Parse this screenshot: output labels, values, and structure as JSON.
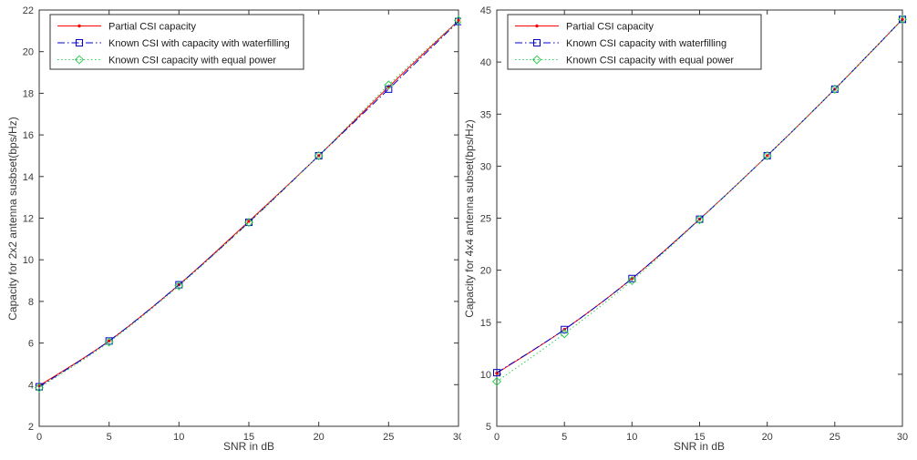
{
  "figure": {
    "background": "#ffffff",
    "axis_color": "#333333",
    "text_color": "#3a3a3a"
  },
  "chart_data": [
    {
      "id": "chart-2x2",
      "type": "line",
      "title": "",
      "xlabel": "SNR in dB",
      "ylabel": "Capacity for 2x2 antenna susbset(bps/Hz)",
      "xlim": [
        0,
        30
      ],
      "ylim": [
        2,
        22
      ],
      "xticks": [
        0,
        5,
        10,
        15,
        20,
        25,
        30
      ],
      "yticks": [
        2,
        4,
        6,
        8,
        10,
        12,
        14,
        16,
        18,
        20,
        22
      ],
      "grid": false,
      "legend_position": "top-left",
      "x": [
        0,
        5,
        10,
        15,
        20,
        25,
        30
      ],
      "series": [
        {
          "name": "Partial CSI capacity",
          "color": "#ff0000",
          "line_style": "solid",
          "marker": "dot",
          "values": [
            3.95,
            6.1,
            8.8,
            11.85,
            15.0,
            18.3,
            21.5
          ]
        },
        {
          "name": "Known CSI with capacity with waterfilling",
          "color": "#0000cc",
          "line_style": "dashdot",
          "marker": "square",
          "values": [
            3.9,
            6.1,
            8.8,
            11.8,
            15.0,
            18.2,
            21.45
          ]
        },
        {
          "name": "Known CSI capacity with equal power",
          "color": "#33cc55",
          "line_style": "dotted",
          "marker": "diamond",
          "values": [
            3.85,
            6.05,
            8.75,
            11.8,
            15.0,
            18.4,
            21.5
          ]
        }
      ]
    },
    {
      "id": "chart-4x4",
      "type": "line",
      "title": "",
      "xlabel": "SNR in dB",
      "ylabel": "Capacity for 4x4 antenna subset(bps/Hz)",
      "xlim": [
        0,
        30
      ],
      "ylim": [
        5,
        45
      ],
      "xticks": [
        0,
        5,
        10,
        15,
        20,
        25,
        30
      ],
      "yticks": [
        5,
        10,
        15,
        20,
        25,
        30,
        35,
        40,
        45
      ],
      "grid": false,
      "legend_position": "top-left",
      "x": [
        0,
        5,
        10,
        15,
        20,
        25,
        30
      ],
      "series": [
        {
          "name": "Partial CSI capacity",
          "color": "#ff0000",
          "line_style": "solid",
          "marker": "dot",
          "values": [
            10.1,
            14.3,
            19.2,
            24.9,
            31.0,
            37.4,
            44.1
          ]
        },
        {
          "name": "Known CSI capacity with waterfilling",
          "color": "#0000cc",
          "line_style": "dashdot",
          "marker": "square",
          "values": [
            10.15,
            14.3,
            19.2,
            24.9,
            31.0,
            37.4,
            44.1
          ]
        },
        {
          "name": "Known CSI capacity with equal power",
          "color": "#33cc55",
          "line_style": "dotted",
          "marker": "diamond",
          "values": [
            9.3,
            13.9,
            19.0,
            24.85,
            31.0,
            37.4,
            44.1
          ]
        }
      ]
    }
  ]
}
